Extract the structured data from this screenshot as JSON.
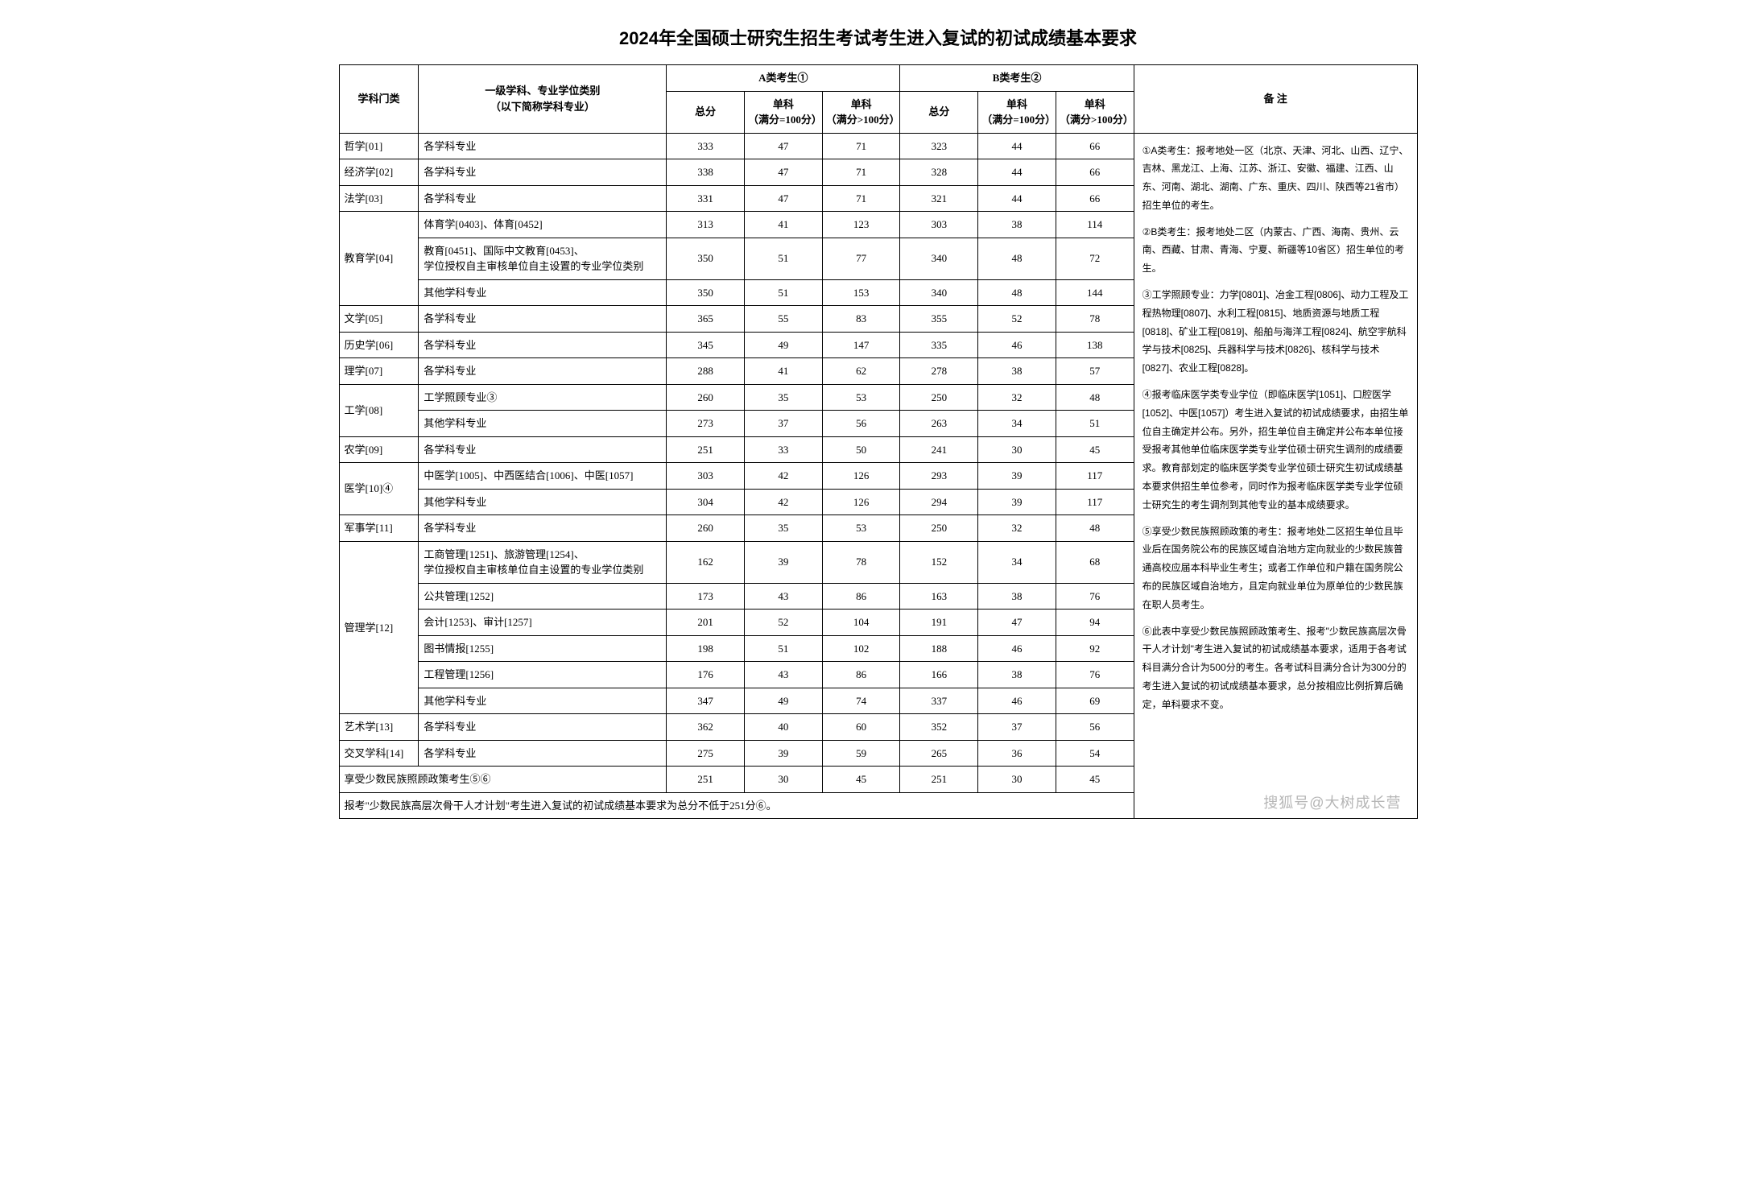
{
  "title": "2024年全国硕士研究生招生考试考生进入复试的初试成绩基本要求",
  "headers": {
    "category": "学科门类",
    "major": "一级学科、专业学位类别\n（以下简称学科专业）",
    "groupA": "A类考生①",
    "groupB": "B类考生②",
    "notes": "备  注",
    "total": "总分",
    "sub100": "单科\n（满分=100分）",
    "subGt100": "单科\n（满分>100分）"
  },
  "rows": [
    {
      "cat": "哲学[01]",
      "major": "各学科专业",
      "a": [
        333,
        47,
        71
      ],
      "b": [
        323,
        44,
        66
      ]
    },
    {
      "cat": "经济学[02]",
      "major": "各学科专业",
      "a": [
        338,
        47,
        71
      ],
      "b": [
        328,
        44,
        66
      ]
    },
    {
      "cat": "法学[03]",
      "major": "各学科专业",
      "a": [
        331,
        47,
        71
      ],
      "b": [
        321,
        44,
        66
      ]
    },
    {
      "cat": "教育学[04]",
      "rowspan": 3,
      "major": "体育学[0403]、体育[0452]",
      "a": [
        313,
        41,
        123
      ],
      "b": [
        303,
        38,
        114
      ]
    },
    {
      "major": "教育[0451]、国际中文教育[0453]、\n学位授权自主审核单位自主设置的专业学位类别",
      "a": [
        350,
        51,
        77
      ],
      "b": [
        340,
        48,
        72
      ]
    },
    {
      "major": "其他学科专业",
      "a": [
        350,
        51,
        153
      ],
      "b": [
        340,
        48,
        144
      ]
    },
    {
      "cat": "文学[05]",
      "major": "各学科专业",
      "a": [
        365,
        55,
        83
      ],
      "b": [
        355,
        52,
        78
      ]
    },
    {
      "cat": "历史学[06]",
      "major": "各学科专业",
      "a": [
        345,
        49,
        147
      ],
      "b": [
        335,
        46,
        138
      ]
    },
    {
      "cat": "理学[07]",
      "major": "各学科专业",
      "a": [
        288,
        41,
        62
      ],
      "b": [
        278,
        38,
        57
      ]
    },
    {
      "cat": "工学[08]",
      "rowspan": 2,
      "major": "工学照顾专业③",
      "a": [
        260,
        35,
        53
      ],
      "b": [
        250,
        32,
        48
      ]
    },
    {
      "major": "其他学科专业",
      "a": [
        273,
        37,
        56
      ],
      "b": [
        263,
        34,
        51
      ]
    },
    {
      "cat": "农学[09]",
      "major": "各学科专业",
      "a": [
        251,
        33,
        50
      ],
      "b": [
        241,
        30,
        45
      ]
    },
    {
      "cat": "医学[10]④",
      "rowspan": 2,
      "major": "中医学[1005]、中西医结合[1006]、中医[1057]",
      "a": [
        303,
        42,
        126
      ],
      "b": [
        293,
        39,
        117
      ]
    },
    {
      "major": "其他学科专业",
      "a": [
        304,
        42,
        126
      ],
      "b": [
        294,
        39,
        117
      ]
    },
    {
      "cat": "军事学[11]",
      "major": "各学科专业",
      "a": [
        260,
        35,
        53
      ],
      "b": [
        250,
        32,
        48
      ]
    },
    {
      "cat": "管理学[12]",
      "rowspan": 6,
      "major": "工商管理[1251]、旅游管理[1254]、\n学位授权自主审核单位自主设置的专业学位类别",
      "a": [
        162,
        39,
        78
      ],
      "b": [
        152,
        34,
        68
      ]
    },
    {
      "major": "公共管理[1252]",
      "a": [
        173,
        43,
        86
      ],
      "b": [
        163,
        38,
        76
      ]
    },
    {
      "major": "会计[1253]、审计[1257]",
      "a": [
        201,
        52,
        104
      ],
      "b": [
        191,
        47,
        94
      ]
    },
    {
      "major": "图书情报[1255]",
      "a": [
        198,
        51,
        102
      ],
      "b": [
        188,
        46,
        92
      ]
    },
    {
      "major": "工程管理[1256]",
      "a": [
        176,
        43,
        86
      ],
      "b": [
        166,
        38,
        76
      ]
    },
    {
      "major": "其他学科专业",
      "a": [
        347,
        49,
        74
      ],
      "b": [
        337,
        46,
        69
      ]
    },
    {
      "cat": "艺术学[13]",
      "major": "各学科专业",
      "a": [
        362,
        40,
        60
      ],
      "b": [
        352,
        37,
        56
      ]
    },
    {
      "cat": "交叉学科[14]",
      "major": "各学科专业",
      "a": [
        275,
        39,
        59
      ],
      "b": [
        265,
        36,
        54
      ]
    },
    {
      "cat": "享受少数民族照顾政策考生⑤⑥",
      "catspan": 2,
      "a": [
        251,
        30,
        45
      ],
      "b": [
        251,
        30,
        45
      ]
    }
  ],
  "footer": "报考\"少数民族高层次骨干人才计划\"考生进入复试的初试成绩基本要求为总分不低于251分⑥。",
  "notes": [
    "①A类考生：报考地处一区（北京、天津、河北、山西、辽宁、吉林、黑龙江、上海、江苏、浙江、安徽、福建、江西、山东、河南、湖北、湖南、广东、重庆、四川、陕西等21省市）招生单位的考生。",
    "②B类考生：报考地处二区（内蒙古、广西、海南、贵州、云南、西藏、甘肃、青海、宁夏、新疆等10省区）招生单位的考生。",
    "③工学照顾专业：力学[0801]、冶金工程[0806]、动力工程及工程热物理[0807]、水利工程[0815]、地质资源与地质工程[0818]、矿业工程[0819]、船舶与海洋工程[0824]、航空宇航科学与技术[0825]、兵器科学与技术[0826]、核科学与技术[0827]、农业工程[0828]。",
    "④报考临床医学类专业学位（即临床医学[1051]、口腔医学[1052]、中医[1057]）考生进入复试的初试成绩要求，由招生单位自主确定并公布。另外，招生单位自主确定并公布本单位接受报考其他单位临床医学类专业学位硕士研究生调剂的成绩要求。教育部划定的临床医学类专业学位硕士研究生初试成绩基本要求供招生单位参考，同时作为报考临床医学类专业学位硕士研究生的考生调剂到其他专业的基本成绩要求。",
    "⑤享受少数民族照顾政策的考生：报考地处二区招生单位且毕业后在国务院公布的民族区域自治地方定向就业的少数民族普通高校应届本科毕业生考生；或者工作单位和户籍在国务院公布的民族区域自治地方，且定向就业单位为原单位的少数民族在职人员考生。",
    "⑥此表中享受少数民族照顾政策考生、报考\"少数民族高层次骨干人才计划\"考生进入复试的初试成绩基本要求，适用于各考试科目满分合计为500分的考生。各考试科目满分合计为300分的考生进入复试的初试成绩基本要求，总分按相应比例折算后确定，单科要求不变。"
  ],
  "watermark": "搜狐号@大树成长营"
}
